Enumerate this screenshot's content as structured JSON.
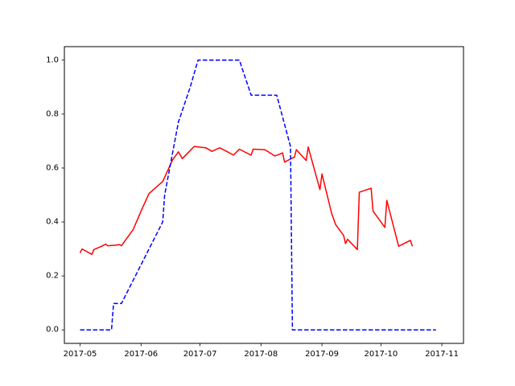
{
  "chart_data": {
    "type": "line",
    "title": "",
    "xlabel": "",
    "ylabel": "",
    "x_axis": {
      "type": "date",
      "range": [
        "2017-04-23",
        "2017-11-12"
      ],
      "ticks": [
        "2017-05-01",
        "2017-06-01",
        "2017-07-01",
        "2017-08-01",
        "2017-09-01",
        "2017-10-01",
        "2017-11-01"
      ],
      "tick_labels": [
        "2017-05",
        "2017-06",
        "2017-07",
        "2017-08",
        "2017-09",
        "2017-10",
        "2017-11"
      ]
    },
    "y_axis": {
      "range": [
        -0.05,
        1.05
      ],
      "ticks": [
        0.0,
        0.2,
        0.4,
        0.6,
        0.8,
        1.0
      ],
      "tick_labels": [
        "0.0",
        "0.2",
        "0.4",
        "0.6",
        "0.8",
        "1.0"
      ]
    },
    "grid": false,
    "legend": "none",
    "series": [
      {
        "color": "#ff0000",
        "style": "solid",
        "points": [
          [
            "2017-05-01",
            0.285
          ],
          [
            "2017-05-02",
            0.3
          ],
          [
            "2017-05-07",
            0.28
          ],
          [
            "2017-05-08",
            0.298
          ],
          [
            "2017-05-12",
            0.31
          ],
          [
            "2017-05-14",
            0.318
          ],
          [
            "2017-05-15",
            0.312
          ],
          [
            "2017-05-19",
            0.314
          ],
          [
            "2017-05-21",
            0.316
          ],
          [
            "2017-05-22",
            0.312
          ],
          [
            "2017-05-28",
            0.372
          ],
          [
            "2017-06-01",
            0.44
          ],
          [
            "2017-06-05",
            0.505
          ],
          [
            "2017-06-12",
            0.55
          ],
          [
            "2017-06-17",
            0.63
          ],
          [
            "2017-06-20",
            0.66
          ],
          [
            "2017-06-22",
            0.635
          ],
          [
            "2017-06-28",
            0.68
          ],
          [
            "2017-07-04",
            0.675
          ],
          [
            "2017-07-07",
            0.662
          ],
          [
            "2017-07-11",
            0.675
          ],
          [
            "2017-07-15",
            0.66
          ],
          [
            "2017-07-18",
            0.648
          ],
          [
            "2017-07-21",
            0.67
          ],
          [
            "2017-07-25",
            0.655
          ],
          [
            "2017-07-27",
            0.648
          ],
          [
            "2017-07-28",
            0.67
          ],
          [
            "2017-08-03",
            0.668
          ],
          [
            "2017-08-08",
            0.645
          ],
          [
            "2017-08-10",
            0.65
          ],
          [
            "2017-08-12",
            0.656
          ],
          [
            "2017-08-13",
            0.622
          ],
          [
            "2017-08-17",
            0.637
          ],
          [
            "2017-08-18",
            0.64
          ],
          [
            "2017-08-19",
            0.668
          ],
          [
            "2017-08-24",
            0.628
          ],
          [
            "2017-08-25",
            0.678
          ],
          [
            "2017-08-31",
            0.52
          ],
          [
            "2017-09-01",
            0.578
          ],
          [
            "2017-09-06",
            0.43
          ],
          [
            "2017-09-08",
            0.39
          ],
          [
            "2017-09-12",
            0.35
          ],
          [
            "2017-09-13",
            0.32
          ],
          [
            "2017-09-14",
            0.336
          ],
          [
            "2017-09-19",
            0.298
          ],
          [
            "2017-09-20",
            0.51
          ],
          [
            "2017-09-26",
            0.525
          ],
          [
            "2017-09-27",
            0.44
          ],
          [
            "2017-10-03",
            0.38
          ],
          [
            "2017-10-04",
            0.48
          ],
          [
            "2017-10-10",
            0.31
          ],
          [
            "2017-10-16",
            0.332
          ],
          [
            "2017-10-17",
            0.31
          ]
        ]
      },
      {
        "color": "#0000ff",
        "style": "dashed",
        "points": [
          [
            "2017-05-01",
            0.0
          ],
          [
            "2017-05-17",
            0.0
          ],
          [
            "2017-05-18",
            0.098
          ],
          [
            "2017-05-22",
            0.098
          ],
          [
            "2017-06-12",
            0.4
          ],
          [
            "2017-06-13",
            0.5
          ],
          [
            "2017-06-20",
            0.77
          ],
          [
            "2017-06-26",
            0.9
          ],
          [
            "2017-06-30",
            1.0
          ],
          [
            "2017-07-21",
            1.0
          ],
          [
            "2017-07-27",
            0.87
          ],
          [
            "2017-08-09",
            0.87
          ],
          [
            "2017-08-16",
            0.68
          ],
          [
            "2017-08-17",
            0.0
          ],
          [
            "2017-10-29",
            0.0
          ]
        ]
      }
    ]
  }
}
